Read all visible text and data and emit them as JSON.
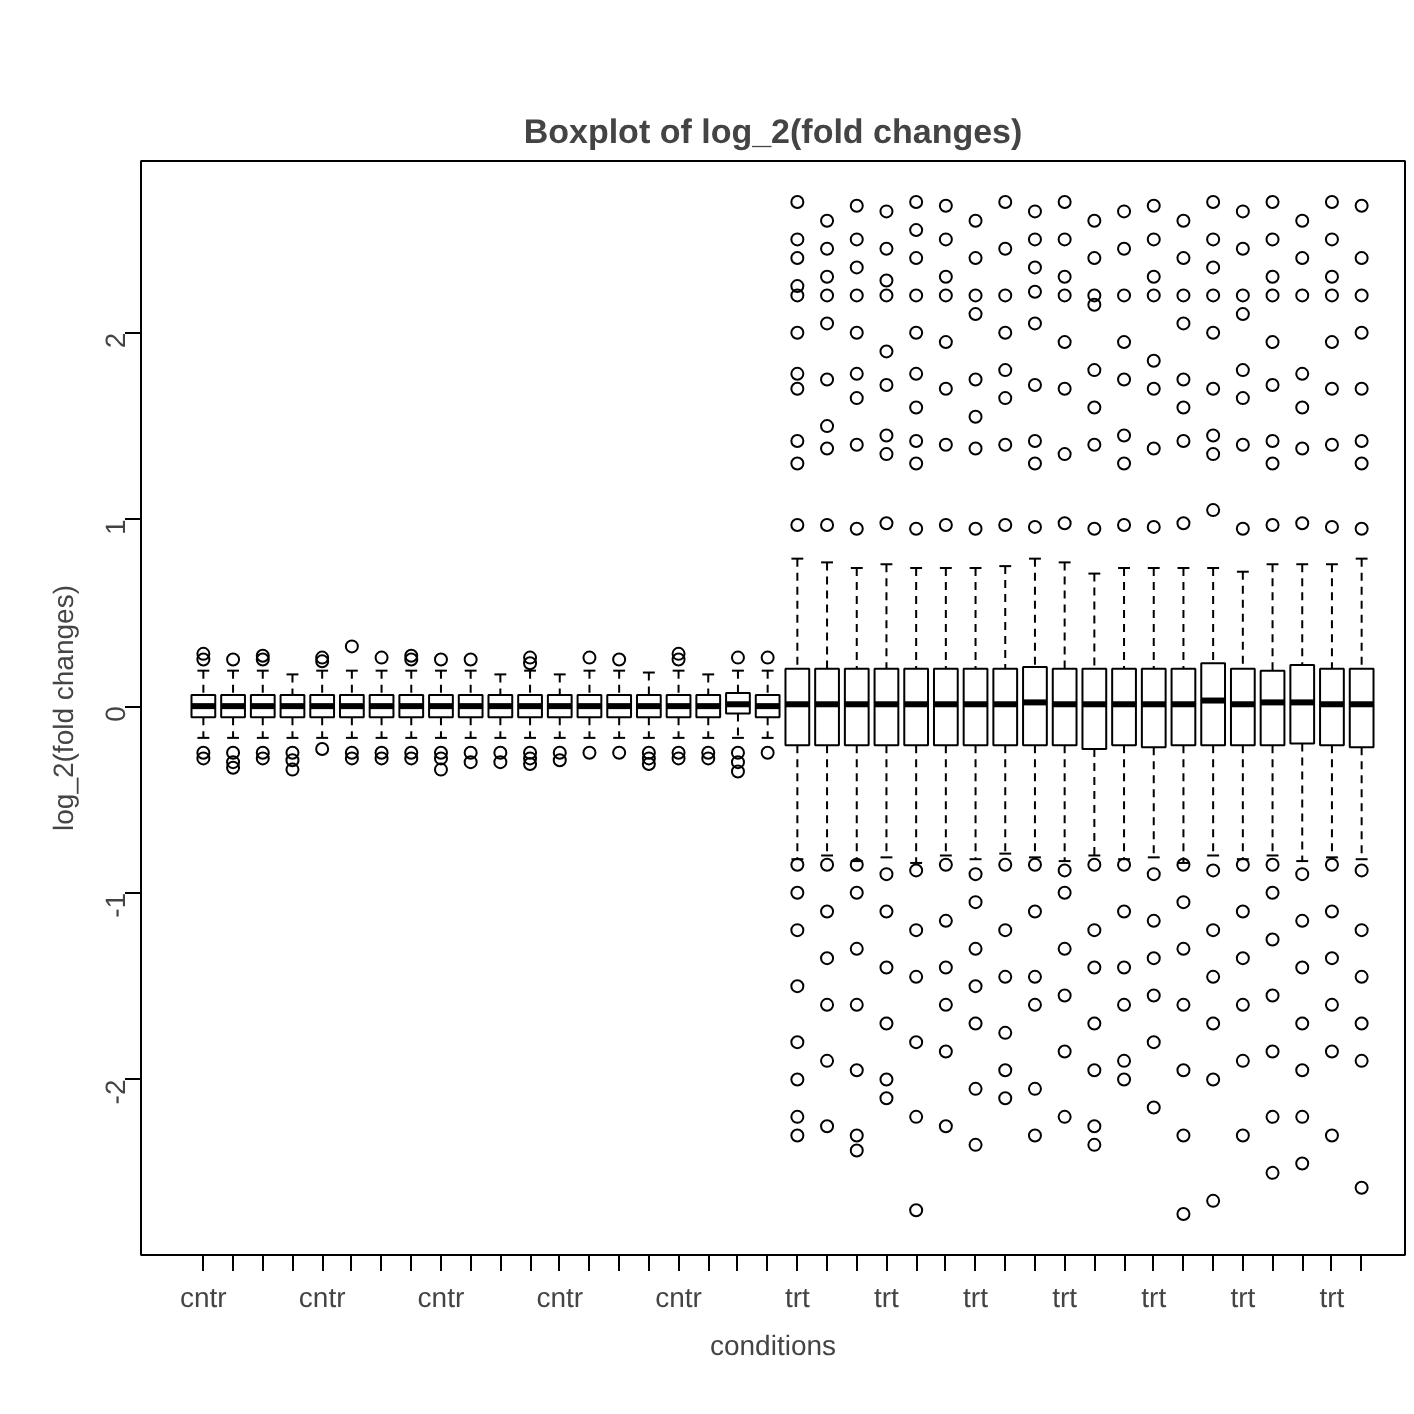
{
  "chart_data": {
    "type": "box",
    "title": "Boxplot of log_2(fold changes)",
    "xlabel": "conditions",
    "ylabel": "log_2(fold changes)",
    "categories": [
      "cntr",
      null,
      null,
      null,
      "cntr",
      null,
      null,
      null,
      "cntr",
      null,
      null,
      null,
      "cntr",
      null,
      null,
      null,
      "cntr",
      null,
      null,
      null,
      "trt",
      null,
      null,
      "trt",
      null,
      null,
      "trt",
      null,
      null,
      "trt",
      null,
      null,
      "trt",
      null,
      null,
      "trt",
      null,
      null,
      "trt",
      null
    ],
    "ylim": [
      -2.94,
      2.92
    ],
    "yticks": [
      -2,
      -1,
      0,
      1,
      2
    ],
    "grid": false,
    "marker": "circle",
    "boxes": [
      {
        "low": -0.17,
        "q1": -0.06,
        "median": 0,
        "q3": 0.06,
        "high": 0.19,
        "outliers": [
          0.28,
          0.25,
          -0.25,
          -0.28
        ]
      },
      {
        "low": -0.17,
        "q1": -0.06,
        "median": 0,
        "q3": 0.06,
        "high": 0.19,
        "outliers": [
          0.25,
          -0.25,
          -0.3,
          -0.33
        ]
      },
      {
        "low": -0.17,
        "q1": -0.06,
        "median": 0,
        "q3": 0.06,
        "high": 0.19,
        "outliers": [
          0.27,
          0.25,
          -0.25,
          -0.28
        ]
      },
      {
        "low": -0.17,
        "q1": -0.06,
        "median": 0,
        "q3": 0.06,
        "high": 0.17,
        "outliers": [
          -0.25,
          -0.29,
          -0.34
        ]
      },
      {
        "low": -0.17,
        "q1": -0.06,
        "median": 0,
        "q3": 0.06,
        "high": 0.19,
        "outliers": [
          0.26,
          0.24,
          -0.23
        ]
      },
      {
        "low": -0.17,
        "q1": -0.06,
        "median": 0,
        "q3": 0.06,
        "high": 0.19,
        "outliers": [
          0.32,
          -0.25,
          -0.28
        ]
      },
      {
        "low": -0.17,
        "q1": -0.06,
        "median": 0,
        "q3": 0.06,
        "high": 0.19,
        "outliers": [
          0.26,
          -0.25,
          -0.28
        ]
      },
      {
        "low": -0.17,
        "q1": -0.06,
        "median": 0,
        "q3": 0.06,
        "high": 0.19,
        "outliers": [
          0.27,
          0.25,
          -0.25,
          -0.28
        ]
      },
      {
        "low": -0.17,
        "q1": -0.06,
        "median": 0,
        "q3": 0.06,
        "high": 0.19,
        "outliers": [
          0.25,
          -0.25,
          -0.28,
          -0.34
        ]
      },
      {
        "low": -0.17,
        "q1": -0.06,
        "median": 0,
        "q3": 0.06,
        "high": 0.19,
        "outliers": [
          0.25,
          -0.25,
          -0.3
        ]
      },
      {
        "low": -0.17,
        "q1": -0.06,
        "median": 0,
        "q3": 0.06,
        "high": 0.17,
        "outliers": [
          -0.25,
          -0.3
        ]
      },
      {
        "low": -0.17,
        "q1": -0.06,
        "median": 0,
        "q3": 0.06,
        "high": 0.19,
        "outliers": [
          0.26,
          0.23,
          -0.25,
          -0.28,
          -0.31
        ]
      },
      {
        "low": -0.17,
        "q1": -0.06,
        "median": 0,
        "q3": 0.06,
        "high": 0.17,
        "outliers": [
          -0.25,
          -0.29
        ]
      },
      {
        "low": -0.17,
        "q1": -0.06,
        "median": 0,
        "q3": 0.06,
        "high": 0.19,
        "outliers": [
          0.26,
          -0.25
        ]
      },
      {
        "low": -0.17,
        "q1": -0.06,
        "median": 0,
        "q3": 0.06,
        "high": 0.19,
        "outliers": [
          0.25,
          -0.25
        ]
      },
      {
        "low": -0.17,
        "q1": -0.06,
        "median": 0,
        "q3": 0.06,
        "high": 0.18,
        "outliers": [
          -0.25,
          -0.28,
          -0.31
        ]
      },
      {
        "low": -0.17,
        "q1": -0.06,
        "median": 0,
        "q3": 0.06,
        "high": 0.19,
        "outliers": [
          0.28,
          0.25,
          -0.25,
          -0.28
        ]
      },
      {
        "low": -0.17,
        "q1": -0.06,
        "median": 0,
        "q3": 0.06,
        "high": 0.17,
        "outliers": [
          -0.25,
          -0.28
        ]
      },
      {
        "low": -0.17,
        "q1": -0.04,
        "median": 0.01,
        "q3": 0.07,
        "high": 0.19,
        "outliers": [
          0.26,
          -0.25,
          -0.3,
          -0.35
        ]
      },
      {
        "low": -0.17,
        "q1": -0.06,
        "median": 0,
        "q3": 0.06,
        "high": 0.19,
        "outliers": [
          0.26,
          -0.25
        ]
      },
      {
        "low": -0.82,
        "q1": -0.21,
        "median": 0.01,
        "q3": 0.2,
        "high": 0.79,
        "outliers": [
          0.97,
          1.3,
          1.42,
          1.7,
          1.78,
          2.0,
          2.2,
          2.25,
          2.4,
          2.5,
          2.7,
          -0.85,
          -1.0,
          -1.2,
          -1.5,
          -1.8,
          -2.0,
          -2.2,
          -2.3
        ]
      },
      {
        "low": -0.8,
        "q1": -0.21,
        "median": 0.01,
        "q3": 0.2,
        "high": 0.77,
        "outliers": [
          0.97,
          1.38,
          1.5,
          1.75,
          2.05,
          2.2,
          2.3,
          2.45,
          2.6,
          -0.85,
          -1.1,
          -1.35,
          -1.6,
          -1.9,
          -2.25
        ]
      },
      {
        "low": -0.83,
        "q1": -0.21,
        "median": 0.01,
        "q3": 0.2,
        "high": 0.74,
        "outliers": [
          0.95,
          1.4,
          1.65,
          1.78,
          2.0,
          2.2,
          2.35,
          2.5,
          2.68,
          -0.85,
          -1.0,
          -1.3,
          -1.6,
          -1.95,
          -2.3,
          -2.38
        ]
      },
      {
        "low": -0.81,
        "q1": -0.21,
        "median": 0.01,
        "q3": 0.2,
        "high": 0.76,
        "outliers": [
          0.98,
          1.35,
          1.45,
          1.72,
          1.9,
          2.2,
          2.28,
          2.45,
          2.65,
          -0.9,
          -1.1,
          -1.4,
          -1.7,
          -2.0,
          -2.1
        ]
      },
      {
        "low": -0.84,
        "q1": -0.21,
        "median": 0.01,
        "q3": 0.2,
        "high": 0.74,
        "outliers": [
          0.95,
          1.3,
          1.42,
          1.6,
          1.78,
          2.0,
          2.2,
          2.4,
          2.55,
          2.7,
          -0.88,
          -1.2,
          -1.45,
          -1.8,
          -2.2,
          -2.7
        ]
      },
      {
        "low": -0.8,
        "q1": -0.21,
        "median": 0.01,
        "q3": 0.2,
        "high": 0.74,
        "outliers": [
          0.97,
          1.4,
          1.7,
          1.95,
          2.2,
          2.3,
          2.5,
          2.68,
          -0.85,
          -1.15,
          -1.4,
          -1.6,
          -1.85,
          -2.25
        ]
      },
      {
        "low": -0.82,
        "q1": -0.21,
        "median": 0.01,
        "q3": 0.2,
        "high": 0.74,
        "outliers": [
          0.95,
          1.38,
          1.55,
          1.75,
          2.1,
          2.2,
          2.4,
          2.6,
          -0.9,
          -1.05,
          -1.3,
          -1.5,
          -1.7,
          -2.05,
          -2.35
        ]
      },
      {
        "low": -0.79,
        "q1": -0.21,
        "median": 0.01,
        "q3": 0.2,
        "high": 0.75,
        "outliers": [
          0.97,
          1.4,
          1.65,
          1.8,
          2.0,
          2.2,
          2.45,
          2.7,
          -0.85,
          -1.2,
          -1.45,
          -1.75,
          -1.95,
          -2.1
        ]
      },
      {
        "low": -0.81,
        "q1": -0.21,
        "median": 0.02,
        "q3": 0.21,
        "high": 0.79,
        "outliers": [
          0.96,
          1.3,
          1.42,
          1.72,
          2.05,
          2.22,
          2.35,
          2.5,
          2.65,
          -0.85,
          -1.1,
          -1.45,
          -1.6,
          -2.05,
          -2.3
        ]
      },
      {
        "low": -0.83,
        "q1": -0.21,
        "median": 0.01,
        "q3": 0.2,
        "high": 0.77,
        "outliers": [
          0.98,
          1.35,
          1.7,
          1.95,
          2.2,
          2.3,
          2.5,
          2.7,
          -0.88,
          -1.0,
          -1.3,
          -1.55,
          -1.85,
          -2.2
        ]
      },
      {
        "low": -0.8,
        "q1": -0.23,
        "median": 0.01,
        "q3": 0.2,
        "high": 0.71,
        "outliers": [
          0.95,
          1.4,
          1.6,
          1.8,
          2.15,
          2.2,
          2.4,
          2.6,
          -0.85,
          -1.2,
          -1.4,
          -1.7,
          -1.95,
          -2.25,
          -2.35
        ]
      },
      {
        "low": -0.82,
        "q1": -0.21,
        "median": 0.01,
        "q3": 0.2,
        "high": 0.74,
        "outliers": [
          0.97,
          1.3,
          1.45,
          1.75,
          1.95,
          2.2,
          2.45,
          2.65,
          -0.85,
          -1.1,
          -1.4,
          -1.6,
          -1.9,
          -2.0
        ]
      },
      {
        "low": -0.81,
        "q1": -0.22,
        "median": 0.01,
        "q3": 0.2,
        "high": 0.74,
        "outliers": [
          0.96,
          1.38,
          1.7,
          1.85,
          2.2,
          2.3,
          2.5,
          2.68,
          -0.9,
          -1.15,
          -1.35,
          -1.55,
          -1.8,
          -2.15
        ]
      },
      {
        "low": -0.84,
        "q1": -0.21,
        "median": 0.01,
        "q3": 0.2,
        "high": 0.74,
        "outliers": [
          0.98,
          1.42,
          1.6,
          1.75,
          2.05,
          2.2,
          2.4,
          2.6,
          -0.85,
          -1.05,
          -1.3,
          -1.6,
          -1.95,
          -2.3,
          -2.72
        ]
      },
      {
        "low": -0.8,
        "q1": -0.21,
        "median": 0.03,
        "q3": 0.23,
        "high": 0.74,
        "outliers": [
          1.05,
          1.35,
          1.45,
          1.7,
          2.0,
          2.2,
          2.35,
          2.5,
          2.7,
          -0.88,
          -1.2,
          -1.45,
          -1.7,
          -2.0,
          -2.65
        ]
      },
      {
        "low": -0.82,
        "q1": -0.21,
        "median": 0.01,
        "q3": 0.2,
        "high": 0.72,
        "outliers": [
          0.95,
          1.4,
          1.65,
          1.8,
          2.1,
          2.2,
          2.45,
          2.65,
          -0.85,
          -1.1,
          -1.35,
          -1.6,
          -1.9,
          -2.3
        ]
      },
      {
        "low": -0.8,
        "q1": -0.21,
        "median": 0.02,
        "q3": 0.19,
        "high": 0.76,
        "outliers": [
          0.97,
          1.3,
          1.42,
          1.72,
          1.95,
          2.2,
          2.3,
          2.5,
          2.7,
          -0.85,
          -1.0,
          -1.25,
          -1.55,
          -1.85,
          -2.2,
          -2.5
        ]
      },
      {
        "low": -0.83,
        "q1": -0.2,
        "median": 0.02,
        "q3": 0.22,
        "high": 0.76,
        "outliers": [
          0.98,
          1.38,
          1.6,
          1.78,
          2.2,
          2.4,
          2.6,
          -0.9,
          -1.15,
          -1.4,
          -1.7,
          -1.95,
          -2.2,
          -2.45
        ]
      },
      {
        "low": -0.81,
        "q1": -0.21,
        "median": 0.01,
        "q3": 0.2,
        "high": 0.76,
        "outliers": [
          0.96,
          1.4,
          1.7,
          1.95,
          2.2,
          2.3,
          2.5,
          2.7,
          -0.85,
          -1.1,
          -1.35,
          -1.6,
          -1.85,
          -2.3
        ]
      },
      {
        "low": -0.82,
        "q1": -0.22,
        "median": 0.01,
        "q3": 0.2,
        "high": 0.79,
        "outliers": [
          0.95,
          1.3,
          1.42,
          1.7,
          2.0,
          2.2,
          2.4,
          2.68,
          -0.88,
          -1.2,
          -1.45,
          -1.7,
          -1.9,
          -2.58
        ]
      }
    ]
  }
}
